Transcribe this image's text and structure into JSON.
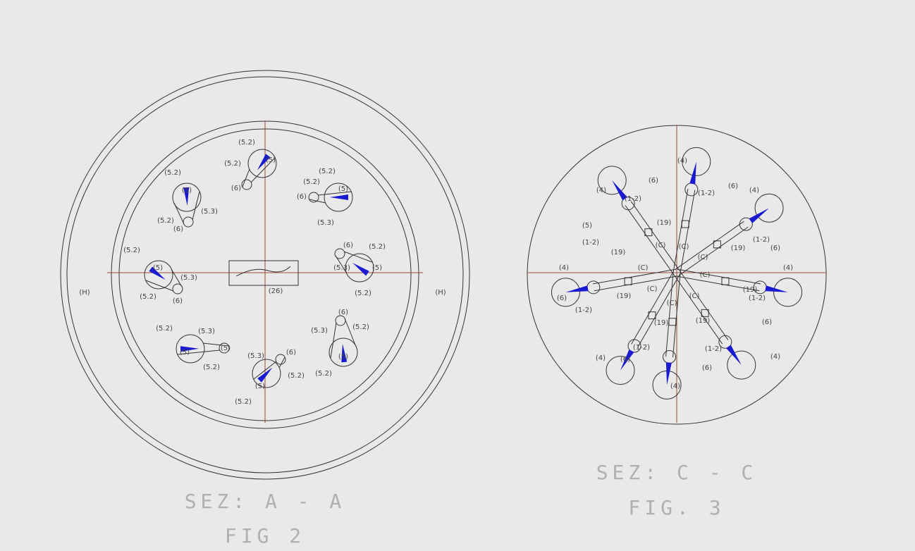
{
  "fig2": {
    "caption": "SEZ: A - A",
    "figure": "FIG 2",
    "side_labels": [
      "(H)",
      "(H)"
    ],
    "labels": [
      "(5.2)",
      "(5.2)",
      "(5)",
      "(6)",
      "(5.2)",
      "(5)",
      "(5.3)",
      "(5.2)",
      "(6)",
      "(5.2)",
      "(5.2)",
      "(6)",
      "(5)",
      "(5.3)",
      "(5.2)",
      "(5)",
      "(5.3)",
      "(5.2)",
      "(6)",
      "(26)",
      "(6)",
      "(5.2)",
      "(5.3)",
      "(5)",
      "(5.2)",
      "(5.2)",
      "(5.3)",
      "(5)",
      "(5)",
      "(5.2)",
      "(5.3)",
      "(6)",
      "(5.2)",
      "(5)",
      "(5.2)",
      "(6)",
      "(5.3)",
      "(5.2)",
      "(5)",
      "(5.2)"
    ]
  },
  "fig3": {
    "caption": "SEZ: C - C",
    "figure": "FIG. 3",
    "labels": [
      "(4)",
      "(6)",
      "(1-2)",
      "(4)",
      "(5)",
      "(1-2)",
      "(19)",
      "(19)",
      "(C)",
      "(C)",
      "(1-2)",
      "(6)",
      "(4)",
      "(C)",
      "(19)",
      "(1-2)",
      "(6)",
      "(4)",
      "(C)",
      "(19)",
      "(1-2)",
      "(6)",
      "(4)",
      "(C)",
      "(4)",
      "(19)",
      "(6)",
      "(1-2)",
      "(C)",
      "(C)",
      "(C)",
      "(19)",
      "(19)",
      "(1-2)",
      "(6)",
      "(4)",
      "(1-2)",
      "(6)",
      "(4)"
    ]
  }
}
